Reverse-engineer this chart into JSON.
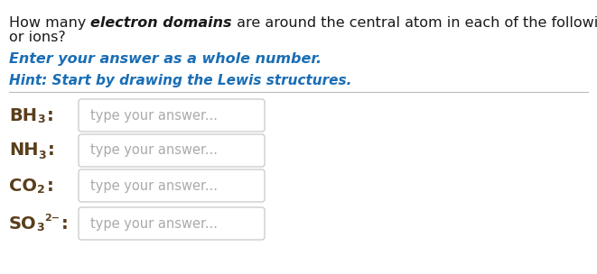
{
  "bg_color": "#ffffff",
  "normal_text_color": "#1a1a1a",
  "blue_color": "#1a6eb5",
  "label_color": "#5a3e1b",
  "placeholder_color": "#aaaaaa",
  "box_border_color": "#c8c8c8",
  "box_fill_color": "#ffffff",
  "divider_color": "#bbbbbb",
  "seg1": "How many ",
  "seg2": "electron domains",
  "seg3": " are around the central atom in each of the following molecules",
  "line2": "or ions?",
  "instruction": "Enter your answer as a whole number.",
  "hint": "Hint: Start by drawing the Lewis structures.",
  "placeholder": "type your answer...",
  "row_mains": [
    "BH",
    "NH",
    "CO",
    "SO"
  ],
  "row_subs": [
    "3",
    "3",
    "2",
    "3"
  ],
  "row_sups": [
    "",
    "",
    "",
    "2−"
  ],
  "title_fs": 11.5,
  "instr_fs": 11.5,
  "hint_fs": 11.0,
  "label_main_fs": 14,
  "label_sub_fs": 9,
  "label_sup_fs": 8,
  "placeholder_fs": 10.5
}
